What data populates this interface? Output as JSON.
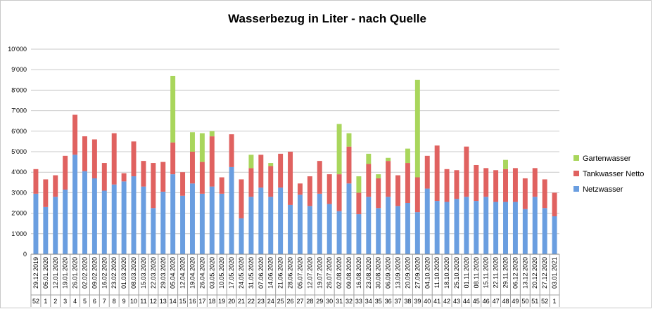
{
  "chart_data": {
    "type": "bar",
    "stacked": true,
    "title": "Wasserbezug in Liter - nach Quelle",
    "xlabel": "",
    "ylabel": "",
    "ylim": [
      0,
      10000
    ],
    "yticks": [
      "0",
      "1'000",
      "2'000",
      "3'000",
      "4'000",
      "5'000",
      "6'000",
      "7'000",
      "8'000",
      "9'000",
      "10'000"
    ],
    "grid": true,
    "legend_position": "right",
    "categories": [
      "29.12.2019",
      "05.01.2020",
      "12.01.2020",
      "19.01.2020",
      "26.01.2020",
      "02.02.2020",
      "09.02.2020",
      "16.02.2020",
      "23.02.2020",
      "01.03.2020",
      "08.03.2020",
      "15.03.2020",
      "22.03.2020",
      "29.03.2020",
      "05.04.2020",
      "12.04.2020",
      "19.04.2020",
      "26.04.2020",
      "03.05.2020",
      "10.05.2020",
      "17.05.2020",
      "24.05.2020",
      "31.05.2020",
      "07.06.2020",
      "14.06.2020",
      "21.06.2020",
      "28.06.2020",
      "05.07.2020",
      "12.07.2020",
      "19.07.2020",
      "26.07.2020",
      "02.08.2020",
      "09.08.2020",
      "16.08.2020",
      "23.08.2020",
      "30.08.2020",
      "06.09.2020",
      "13.09.2020",
      "20.09.2020",
      "27.09.2020",
      "04.10.2020",
      "11.10.2020",
      "18.10.2020",
      "25.10.2020",
      "01.11.2020",
      "08.11.2020",
      "15.11.2020",
      "22.11.2020",
      "29.11.2020",
      "06.12.2020",
      "13.12.2020",
      "20.12.2020",
      "27.12.2020",
      "03.01.2021"
    ],
    "weeks": [
      "52",
      "1",
      "2",
      "3",
      "4",
      "5",
      "6",
      "7",
      "8",
      "9",
      "10",
      "11",
      "12",
      "13",
      "14",
      "15",
      "16",
      "17",
      "18",
      "19",
      "20",
      "21",
      "22",
      "23",
      "24",
      "25",
      "26",
      "27",
      "28",
      "29",
      "30",
      "31",
      "32",
      "33",
      "34",
      "35",
      "36",
      "37",
      "38",
      "39",
      "40",
      "41",
      "42",
      "43",
      "44",
      "45",
      "46",
      "47",
      "48",
      "49",
      "50",
      "51",
      "52",
      "1"
    ],
    "series": [
      {
        "name": "Netzwasser",
        "color": "#6a9ee0",
        "values": [
          2950,
          2300,
          2800,
          3150,
          4850,
          4050,
          3700,
          3100,
          3400,
          3550,
          3800,
          3300,
          2250,
          3050,
          3900,
          2850,
          3450,
          2950,
          3300,
          2950,
          4250,
          1750,
          2800,
          3250,
          2800,
          3250,
          2400,
          2900,
          2350,
          2950,
          2450,
          2100,
          3450,
          1950,
          2800,
          2250,
          2800,
          2350,
          2500,
          2050,
          3200,
          2600,
          2550,
          2700,
          2800,
          2600,
          2800,
          2550,
          2550,
          2550,
          2200,
          2800,
          2250,
          1850
        ]
      },
      {
        "name": "Tankwasser Netto",
        "color": "#e06260",
        "values": [
          1200,
          1350,
          1050,
          1650,
          1950,
          1700,
          1900,
          1350,
          2500,
          400,
          1700,
          1250,
          2200,
          1450,
          1550,
          1150,
          1550,
          1550,
          2450,
          800,
          1600,
          1900,
          1400,
          1600,
          1500,
          1650,
          2600,
          550,
          1450,
          1600,
          1450,
          1800,
          1800,
          1050,
          1600,
          1450,
          1750,
          1500,
          1950,
          1700,
          1600,
          2700,
          1600,
          1400,
          2450,
          1750,
          1400,
          1550,
          1600,
          1650,
          1500,
          1400,
          1400,
          1150
        ]
      },
      {
        "name": "Gartenwasser",
        "color": "#a9d65c",
        "values": [
          0,
          0,
          0,
          0,
          0,
          0,
          0,
          0,
          0,
          0,
          0,
          0,
          0,
          0,
          3250,
          0,
          950,
          1400,
          250,
          0,
          0,
          0,
          650,
          0,
          150,
          0,
          0,
          0,
          0,
          0,
          0,
          2450,
          650,
          800,
          500,
          200,
          150,
          0,
          700,
          4750,
          0,
          0,
          0,
          0,
          0,
          0,
          0,
          0,
          450,
          0,
          0,
          0,
          0,
          0
        ]
      }
    ]
  }
}
